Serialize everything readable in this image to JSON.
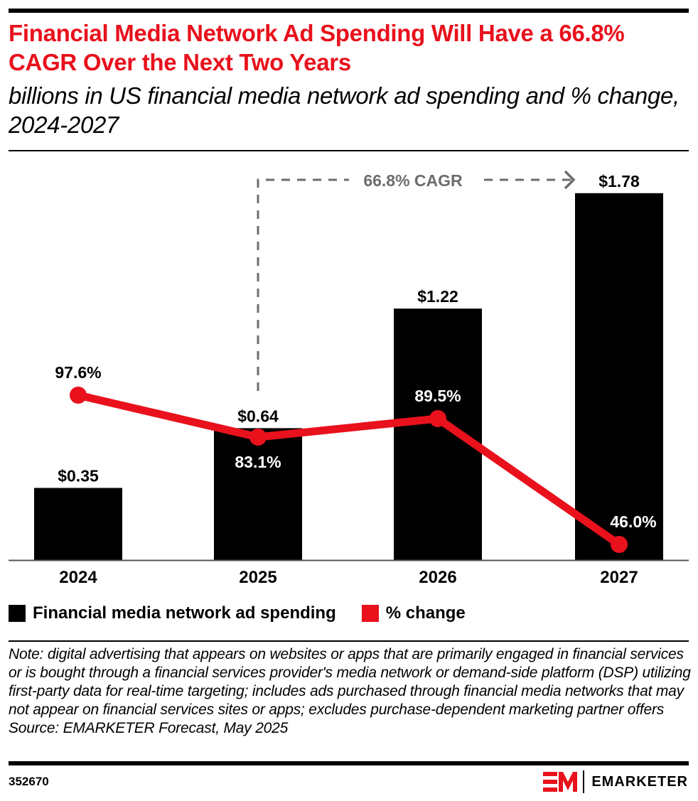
{
  "header": {
    "title": "Financial Media Network Ad Spending Will Have a 66.8% CAGR Over the Next Two Years",
    "subtitle": "billions in US financial media network ad spending and % change, 2024-2027"
  },
  "colors": {
    "accent_red": "#e8111c",
    "bar_black": "#000000",
    "annotation_gray": "#6d6d6d"
  },
  "chart_data": {
    "type": "bar",
    "title": "Financial Media Network Ad Spending Will Have a 66.8% CAGR Over the Next Two Years",
    "subtitle": "billions in US financial media network ad spending and % change, 2024-2027",
    "xlabel": "",
    "ylabel": "",
    "categories": [
      "2024",
      "2025",
      "2026",
      "2027"
    ],
    "series": [
      {
        "name": "Financial media network ad spending",
        "type": "bar",
        "color": "#000000",
        "values": [
          0.35,
          0.64,
          1.22,
          1.78
        ],
        "labels": [
          "$0.35",
          "$0.64",
          "$1.22",
          "$1.78"
        ]
      },
      {
        "name": "% change",
        "type": "line",
        "color": "#e8111c",
        "values": [
          97.6,
          83.1,
          89.5,
          46.0
        ],
        "labels": [
          "97.6%",
          "83.1%",
          "89.5%",
          "46.0%"
        ]
      }
    ],
    "ylim_bars": [
      0,
      1.78
    ],
    "annotation": {
      "text": "66.8% CAGR",
      "from_category": "2025",
      "to_category": "2027"
    },
    "grid": false,
    "legend": "bottom-left"
  },
  "legend": {
    "items": [
      {
        "label": "Financial media network ad spending",
        "color": "#000000"
      },
      {
        "label": "% change",
        "color": "#e8111c"
      }
    ]
  },
  "footer": {
    "note": "Note: digital advertising that appears on websites or apps that are primarily engaged in financial services or is bought through a financial services provider's media network or demand-side platform (DSP) utilizing first-party data for real-time targeting; includes ads purchased through financial media networks that may not appear on financial services sites or apps; excludes purchase-dependent marketing partner offers",
    "source": "Source: EMARKETER Forecast, May 2025",
    "chart_id": "352670",
    "brand_name": "EMARKETER",
    "brand_mark": "EM"
  }
}
